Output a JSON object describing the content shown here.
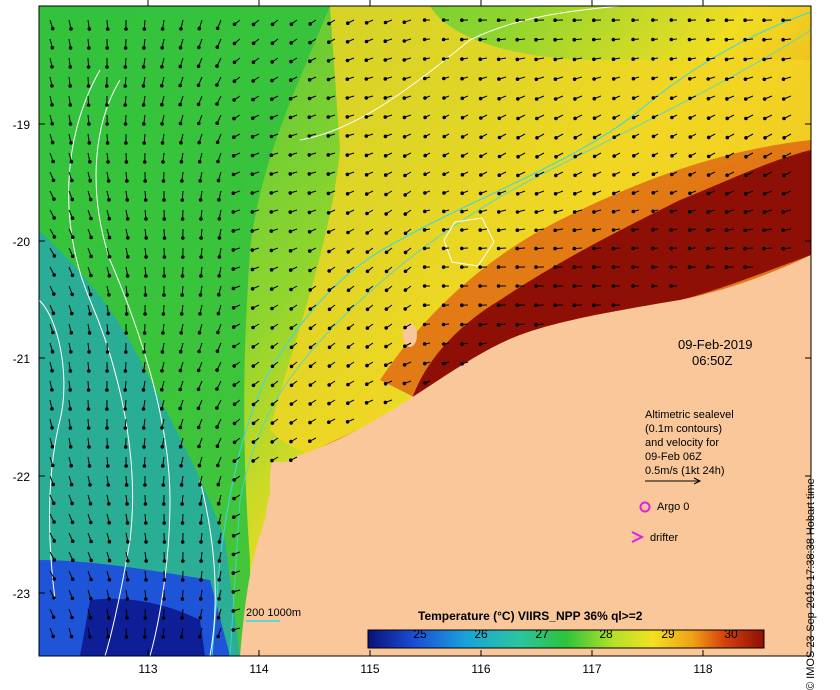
{
  "map": {
    "date": "09-Feb-2019",
    "time": "06:50Z",
    "y_ticks": [
      "-19",
      "-20",
      "-21",
      "-22",
      "-23"
    ],
    "x_ticks": [
      "113",
      "114",
      "115",
      "116",
      "117",
      "118"
    ],
    "colors": {
      "land": "#f9c79a",
      "hot": "#8e0f05",
      "orange": "#e06a12",
      "yellow": "#f3e020",
      "green": "#2cc43a",
      "teal": "#25a7a0",
      "blue": "#1b4fd6"
    }
  },
  "legend": {
    "altimetry_lines": [
      "Altimetric sealevel",
      "(0.1m contours)",
      "and velocity for",
      "09-Feb 06Z",
      "0.5m/s (1kt 24h)"
    ],
    "argo_label": "Argo 0",
    "drifter_label": "drifter",
    "isobath_label": "200  1000m"
  },
  "colorbar": {
    "title": "Temperature (°C) VIIRS_NPP 36% ql>=2",
    "ticks": [
      "25",
      "26",
      "27",
      "28",
      "29",
      "30"
    ]
  },
  "credit": "© IMOS 23-Sep-2019 17:38:38 Hobart time"
}
